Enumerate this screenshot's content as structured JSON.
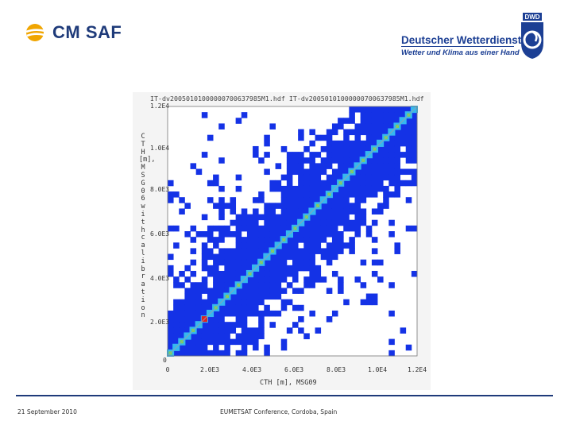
{
  "header": {
    "left_logo_text": "CM SAF",
    "right_logo": {
      "name": "Deutscher Wetterdienst",
      "tagline": "Wetter und Klima aus einer Hand",
      "emblem_text": "DWD"
    }
  },
  "colors": {
    "brand_navy": "#1f3b7a",
    "dwd_blue": "#1c3f94",
    "sun_orange": "#f0a500",
    "plot_blue": "#1432e6",
    "diag_cyan": "#35b8f0",
    "diag_green": "#7cd650",
    "marker_red": "#e02020"
  },
  "chart_data": {
    "type": "heatmap",
    "title": "IT-dv20050101000000700637985M1.hdf IT-dv20050101000000700637985M1.hdf",
    "ylabel": "CTH [m], MSG06 with calibration",
    "xlabel": "CTH [m], MSG09",
    "x_ticks": [
      "0",
      "2.0E3",
      "4.0E3",
      "6.0E3",
      "8.0E3",
      "1.0E4",
      "1.2E4"
    ],
    "y_ticks": [
      "0",
      "2.0E3",
      "4.0E3",
      "6.0E3",
      "8.0E3",
      "1.0E4",
      "1.2E4"
    ],
    "xlim": [
      0,
      12000
    ],
    "ylim": [
      0,
      12000
    ],
    "diagonal": "1:1 line, highest density along diagonal"
  },
  "footer": {
    "date": "21 September 2010",
    "conference": "EUMETSAT Conference, Cordoba, Spain"
  }
}
